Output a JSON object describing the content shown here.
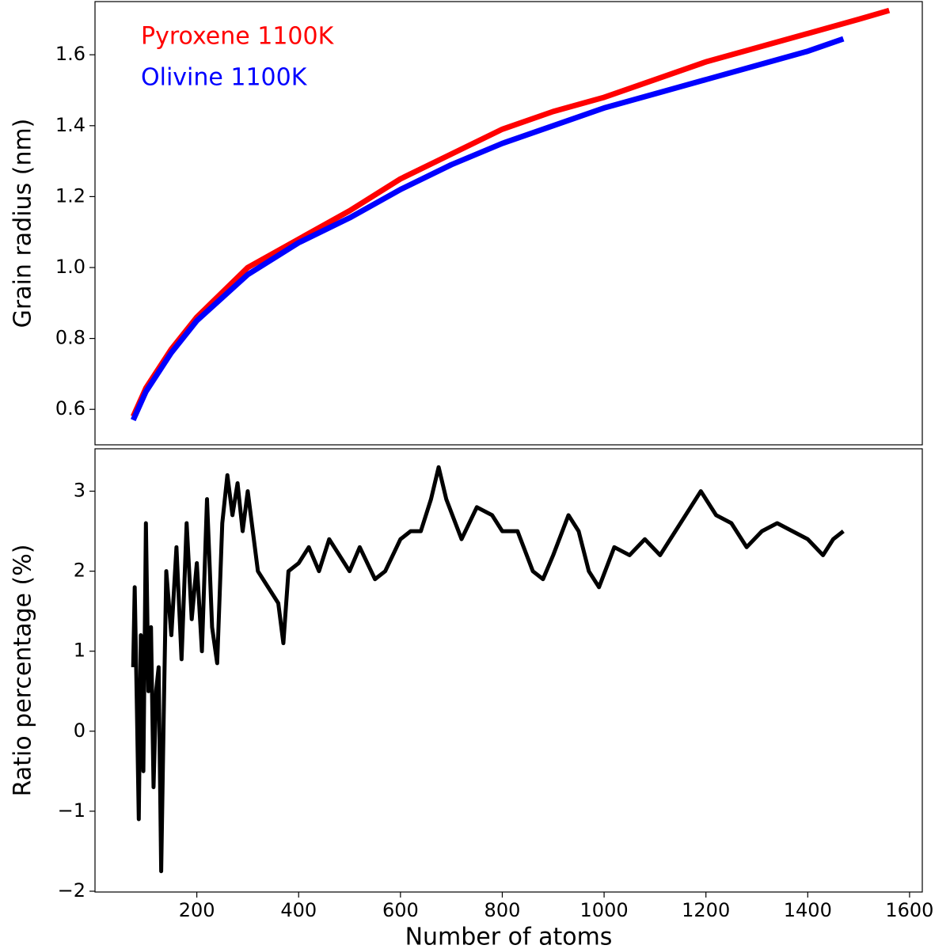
{
  "chart_data": [
    {
      "type": "line",
      "ylabel": "Grain radius (nm)",
      "xlim": [
        0,
        1625
      ],
      "ylim": [
        0.5,
        1.75
      ],
      "yticks": [
        0.6,
        0.8,
        {
          "value": 1.0,
          "label": "1.0"
        },
        1.2,
        1.4,
        1.6
      ],
      "legend": "upper left",
      "series": [
        {
          "name": "Pyroxene 1100K",
          "color": "#ff0000",
          "x": [
            75,
            100,
            150,
            200,
            300,
            400,
            500,
            600,
            700,
            800,
            900,
            1000,
            1100,
            1200,
            1300,
            1400,
            1500,
            1560
          ],
          "values": [
            0.58,
            0.66,
            0.77,
            0.86,
            1.0,
            1.08,
            1.16,
            1.25,
            1.32,
            1.39,
            1.44,
            1.48,
            1.53,
            1.58,
            1.62,
            1.66,
            1.7,
            1.725
          ]
        },
        {
          "name": "Olivine 1100K",
          "color": "#0000ff",
          "x": [
            75,
            100,
            150,
            200,
            300,
            400,
            500,
            600,
            700,
            800,
            900,
            1000,
            1100,
            1200,
            1300,
            1400,
            1470
          ],
          "values": [
            0.57,
            0.65,
            0.76,
            0.85,
            0.98,
            1.07,
            1.14,
            1.22,
            1.29,
            1.35,
            1.4,
            1.45,
            1.49,
            1.53,
            1.57,
            1.61,
            1.645
          ]
        }
      ]
    },
    {
      "type": "line",
      "ylabel": "Ratio percentage (%)",
      "xlabel": "Number of atoms",
      "xlim": [
        0,
        1625
      ],
      "ylim": [
        -2.01,
        3.53
      ],
      "xticks": [
        200,
        400,
        600,
        800,
        1000,
        1200,
        1400,
        1600
      ],
      "yticks": [
        {
          "value": -2,
          "label": "−2"
        },
        {
          "value": -1,
          "label": "−1"
        },
        0,
        1,
        2,
        3
      ],
      "series": [
        {
          "color": "#000000",
          "x": [
            75,
            78,
            82,
            86,
            90,
            95,
            100,
            105,
            110,
            115,
            120,
            125,
            130,
            135,
            140,
            150,
            160,
            170,
            180,
            190,
            200,
            210,
            220,
            230,
            240,
            250,
            260,
            270,
            280,
            290,
            300,
            320,
            340,
            360,
            370,
            380,
            400,
            420,
            440,
            460,
            480,
            500,
            520,
            550,
            570,
            600,
            620,
            640,
            660,
            675,
            690,
            720,
            750,
            780,
            800,
            830,
            860,
            880,
            900,
            930,
            950,
            970,
            990,
            1020,
            1050,
            1080,
            1110,
            1140,
            1170,
            1190,
            1220,
            1250,
            1280,
            1310,
            1340,
            1370,
            1400,
            1430,
            1450,
            1470
          ],
          "values": [
            0.8,
            1.8,
            0.4,
            -1.1,
            1.2,
            -0.5,
            2.6,
            0.5,
            1.3,
            -0.7,
            0.5,
            0.8,
            -1.75,
            0.2,
            2.0,
            1.2,
            2.3,
            0.9,
            2.6,
            1.4,
            2.1,
            1.0,
            2.9,
            1.3,
            0.85,
            2.6,
            3.2,
            2.7,
            3.1,
            2.5,
            3.0,
            2.0,
            1.8,
            1.6,
            1.1,
            2.0,
            2.1,
            2.3,
            2.0,
            2.4,
            2.2,
            2.0,
            2.3,
            1.9,
            2.0,
            2.4,
            2.5,
            2.5,
            2.9,
            3.3,
            2.9,
            2.4,
            2.8,
            2.7,
            2.5,
            2.5,
            2.0,
            1.9,
            2.2,
            2.7,
            2.5,
            2.0,
            1.8,
            2.3,
            2.2,
            2.4,
            2.2,
            2.5,
            2.8,
            3.0,
            2.7,
            2.6,
            2.3,
            2.5,
            2.6,
            2.5,
            2.4,
            2.2,
            2.4,
            2.5
          ]
        }
      ]
    }
  ]
}
